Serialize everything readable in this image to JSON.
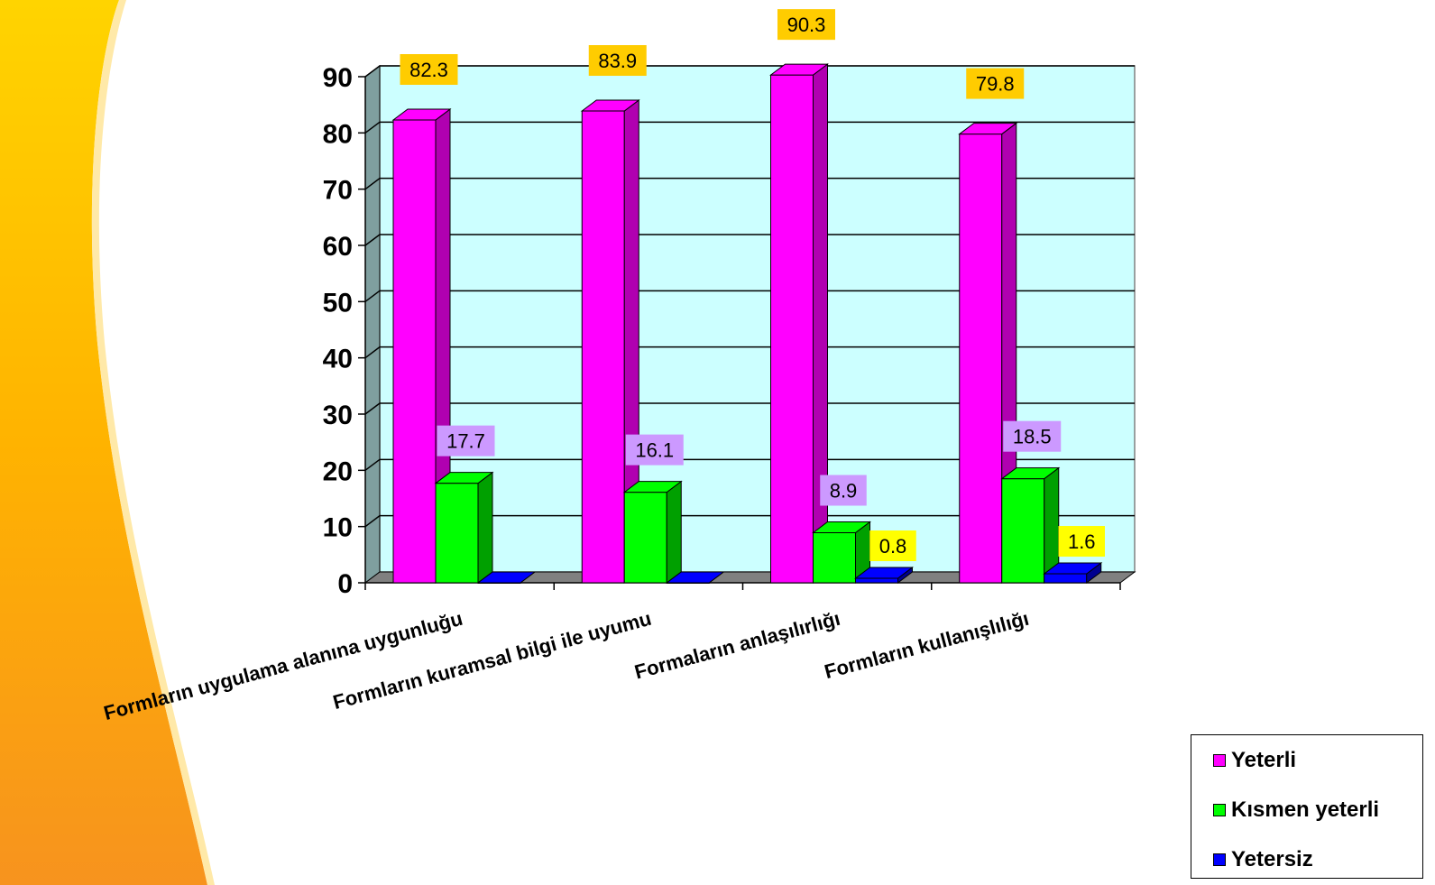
{
  "chart_data": {
    "type": "bar",
    "categories": [
      "Formların uygulama alanına  uygunluğu",
      "Formların kuramsal bilgi  ile uyumu",
      "Formaların anlaşılırlığı",
      "Formların kullanışlılığı"
    ],
    "series": [
      {
        "name": "Yeterli",
        "values": [
          82.3,
          83.9,
          90.3,
          79.8
        ],
        "color": "#ff00ff",
        "side_color": "#b000b0",
        "label_bg": "#ffcc00"
      },
      {
        "name": "Kısmen yeterli",
        "values": [
          17.7,
          16.1,
          8.9,
          18.5
        ],
        "color": "#00ff00",
        "side_color": "#00a000",
        "label_bg": "#cc99ff"
      },
      {
        "name": "Yetersiz",
        "values": [
          0,
          0,
          0.8,
          1.6
        ],
        "color": "#0000ff",
        "side_color": "#000090",
        "label_bg": "#ffff00"
      }
    ],
    "data_labels": [
      [
        "82.3",
        "83.9",
        "90.3",
        "79.8"
      ],
      [
        "17.7",
        "16.1",
        "8.9",
        "18.5"
      ],
      [
        "",
        "",
        "0.8",
        "1.6"
      ]
    ],
    "y_ticks": [
      "0",
      "10",
      "20",
      "30",
      "40",
      "50",
      "60",
      "70",
      "80",
      "90"
    ],
    "ylim": [
      0,
      90
    ],
    "grid": true,
    "legend_position": "bottom-right",
    "plot_background": "#ccffff",
    "wall_color": "#7f9f9f",
    "floor_color": "#808080"
  }
}
